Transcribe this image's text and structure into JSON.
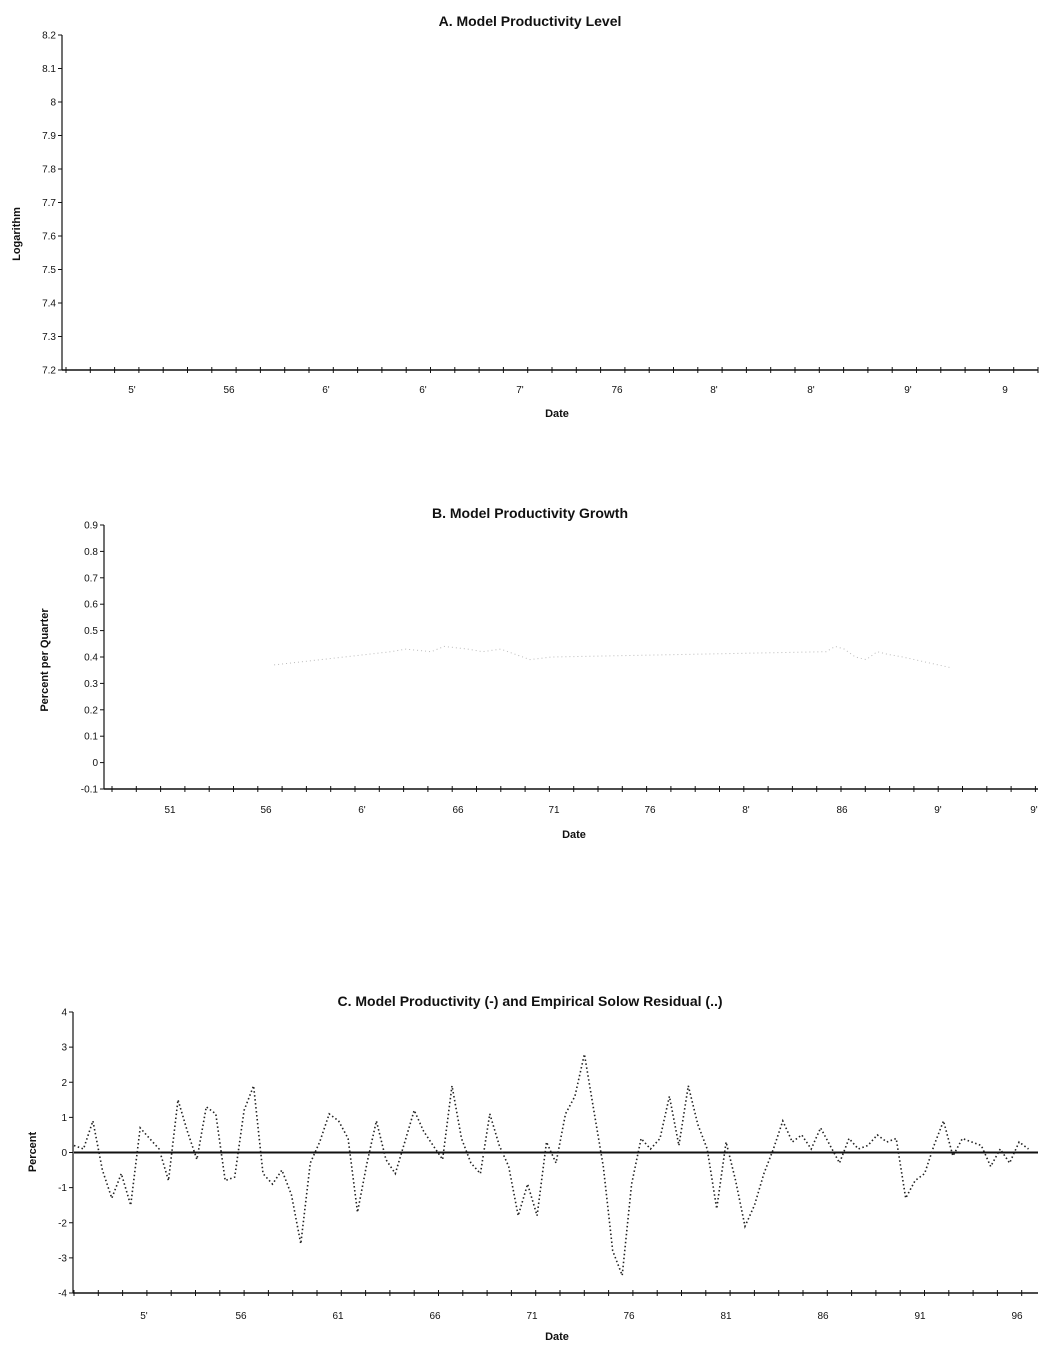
{
  "chart_data": [
    {
      "type": "line",
      "title": "A. Model Productivity Level",
      "xlabel": "Date",
      "ylabel": "Logarithm",
      "x_tick_labels": [
        "5'",
        "56",
        "6'",
        "6'",
        "7'",
        "76",
        "8'",
        "8'",
        "9'",
        "9"
      ],
      "y_tick_labels": [
        "7.2",
        "7.3",
        "7.4",
        "7.5",
        "7.6",
        "7.7",
        "7.8",
        "7.9",
        "8",
        "8.1",
        "8.2"
      ],
      "ylim": [
        7.2,
        8.2
      ],
      "grid": false,
      "series": []
    },
    {
      "type": "line",
      "title": "B. Model Productivity Growth",
      "xlabel": "Date",
      "ylabel": "Percent per Quarter",
      "x_tick_labels": [
        "51",
        "56",
        "6'",
        "66",
        "71",
        "76",
        "8'",
        "86",
        "9'",
        "9'"
      ],
      "y_tick_labels": [
        "-0.1",
        "0",
        "0.1",
        "0.2",
        "0.3",
        "0.4",
        "0.5",
        "0.6",
        "0.7",
        "0.8",
        "0.9"
      ],
      "ylim": [
        -0.1,
        0.9
      ],
      "grid": false,
      "series": [
        {
          "style": "faint",
          "x": [
            1956.2,
            1962.6,
            1963.4,
            1964.8,
            1965.5,
            1966.8,
            1967.6,
            1968.6,
            1970.2,
            1971.4,
            1986.4,
            1986.9,
            1987.4,
            1988.0,
            1988.6,
            1989.2,
            1989.8,
            1990.6,
            1993.2
          ],
          "y": [
            0.37,
            0.42,
            0.43,
            0.42,
            0.44,
            0.43,
            0.42,
            0.43,
            0.39,
            0.4,
            0.42,
            0.44,
            0.43,
            0.4,
            0.39,
            0.42,
            0.41,
            0.4,
            0.36
          ]
        }
      ]
    },
    {
      "type": "line",
      "title": "C. Model Productivity (-) and Empirical Solow Residual (..)",
      "xlabel": "Date",
      "ylabel": "Percent",
      "x_tick_labels": [
        "5'",
        "56",
        "61",
        "66",
        "71",
        "76",
        "81",
        "86",
        "91",
        "96"
      ],
      "y_tick_labels": [
        "-4",
        "-3",
        "-2",
        "-1",
        "0",
        "1",
        "2",
        "3",
        "4"
      ],
      "ylim": [
        -4,
        4
      ],
      "grid": false,
      "series": [
        {
          "name": "Model Productivity",
          "style": "solid",
          "x": [
            1947,
            1998
          ],
          "y": [
            0,
            0
          ]
        },
        {
          "name": "Empirical Solow Residual",
          "style": "dotted",
          "x": [
            1947.0,
            1947.5,
            1948.0,
            1948.5,
            1949.0,
            1949.5,
            1950.0,
            1950.5,
            1951.0,
            1951.5,
            1952.0,
            1952.5,
            1953.0,
            1953.5,
            1954.0,
            1954.5,
            1955.0,
            1955.5,
            1956.0,
            1956.5,
            1957.0,
            1957.5,
            1958.0,
            1958.5,
            1959.0,
            1959.5,
            1960.0,
            1960.5,
            1961.0,
            1961.5,
            1962.0,
            1962.5,
            1963.0,
            1963.5,
            1964.0,
            1964.5,
            1965.0,
            1965.5,
            1966.0,
            1966.5,
            1967.0,
            1967.5,
            1968.0,
            1968.5,
            1969.0,
            1969.5,
            1970.0,
            1970.5,
            1971.0,
            1971.5,
            1972.0,
            1972.5,
            1973.0,
            1973.5,
            1974.0,
            1974.5,
            1975.0,
            1975.5,
            1976.0,
            1976.5,
            1977.0,
            1977.5,
            1978.0,
            1978.5,
            1979.0,
            1979.5,
            1980.0,
            1980.5,
            1981.0,
            1981.5,
            1982.0,
            1982.5,
            1983.0,
            1983.5,
            1984.0,
            1984.5,
            1985.0,
            1985.5,
            1986.0,
            1986.5,
            1987.0,
            1987.5,
            1988.0,
            1988.5,
            1989.0,
            1989.5,
            1990.0,
            1990.5,
            1991.0,
            1991.5,
            1992.0,
            1992.5,
            1993.0,
            1993.5,
            1994.0,
            1994.5,
            1995.0,
            1995.5,
            1996.0,
            1996.5,
            1997.0,
            1997.5
          ],
          "y": [
            0.2,
            0.1,
            0.9,
            -0.5,
            -1.3,
            -0.6,
            -1.5,
            0.7,
            0.4,
            0.1,
            -0.8,
            1.5,
            0.6,
            -0.2,
            1.3,
            1.1,
            -0.8,
            -0.7,
            1.2,
            1.9,
            -0.6,
            -0.9,
            -0.5,
            -1.2,
            -2.6,
            -0.3,
            0.3,
            1.1,
            0.9,
            0.4,
            -1.7,
            -0.3,
            0.9,
            -0.2,
            -0.6,
            0.3,
            1.2,
            0.6,
            0.2,
            -0.2,
            1.9,
            0.4,
            -0.3,
            -0.6,
            1.1,
            0.2,
            -0.4,
            -1.8,
            -0.9,
            -1.8,
            0.3,
            -0.3,
            1.1,
            1.6,
            2.8,
            1.2,
            -0.4,
            -2.8,
            -3.5,
            -0.9,
            0.4,
            0.1,
            0.4,
            1.6,
            0.2,
            1.9,
            0.8,
            0.1,
            -1.6,
            0.3,
            -0.8,
            -2.1,
            -1.5,
            -0.6,
            0.1,
            0.9,
            0.3,
            0.5,
            0.1,
            0.7,
            0.2,
            -0.3,
            0.4,
            0.1,
            0.2,
            0.5,
            0.3,
            0.4,
            -1.3,
            -0.8,
            -0.6,
            0.2,
            0.9,
            -0.1,
            0.4,
            0.3,
            0.2,
            -0.4,
            0.1,
            -0.3,
            0.3,
            0.1
          ]
        }
      ]
    }
  ]
}
